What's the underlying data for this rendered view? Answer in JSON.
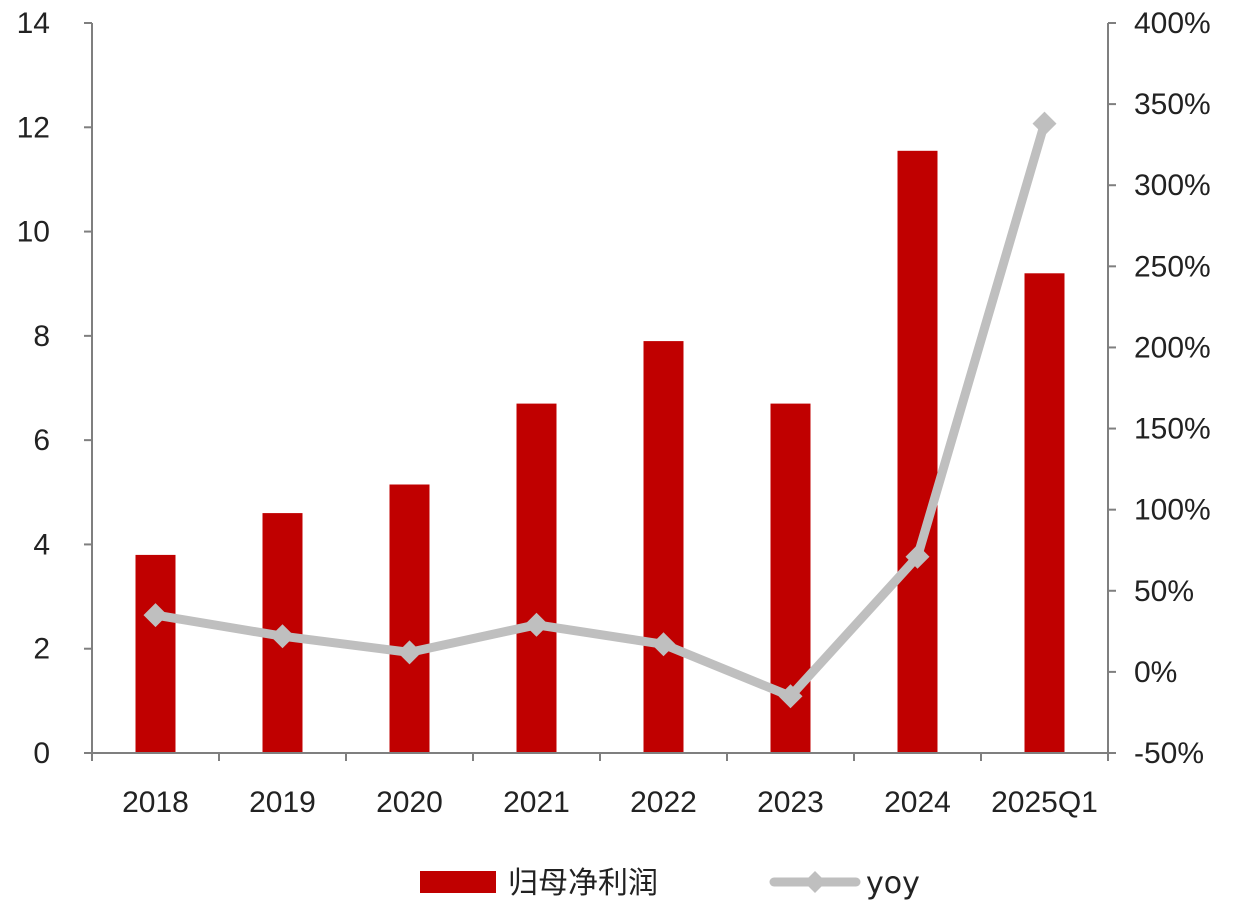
{
  "chart_data": {
    "type": "bar",
    "categories": [
      "2018",
      "2019",
      "2020",
      "2021",
      "2022",
      "2023",
      "2024",
      "2025Q1"
    ],
    "series": [
      {
        "name": "归母净利润",
        "type": "bar",
        "axis": "left",
        "color": "#C00000",
        "values": [
          3.8,
          4.6,
          5.15,
          6.7,
          7.9,
          6.7,
          11.55,
          9.2
        ]
      },
      {
        "name": "yoy",
        "type": "line",
        "axis": "right",
        "color": "#BFBFBF",
        "marker": "diamond",
        "values": [
          0.35,
          0.22,
          0.12,
          0.29,
          0.17,
          -0.15,
          0.71,
          3.38
        ]
      }
    ],
    "y_left": {
      "min": 0,
      "max": 14,
      "ticks": [
        0,
        2,
        4,
        6,
        8,
        10,
        12,
        14
      ],
      "tick_labels": [
        "0",
        "2",
        "4",
        "6",
        "8",
        "10",
        "12",
        "14"
      ]
    },
    "y_right": {
      "min": -0.5,
      "max": 4.0,
      "ticks": [
        -0.5,
        0,
        0.5,
        1.0,
        1.5,
        2.0,
        2.5,
        3.0,
        3.5,
        4.0
      ],
      "tick_labels": [
        "-50%",
        "0%",
        "50%",
        "100%",
        "150%",
        "200%",
        "250%",
        "300%",
        "350%",
        "400%"
      ]
    },
    "title": "",
    "xlabel": "",
    "ylabel": "",
    "grid": false,
    "legend_position": "bottom-center"
  }
}
